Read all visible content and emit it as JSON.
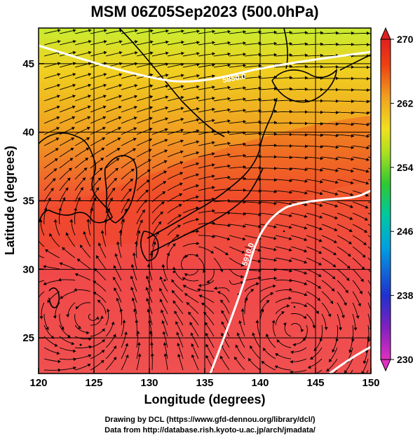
{
  "title": "MSM 06Z05Sep2023 (500.0hPa)",
  "xaxis": {
    "label": "Longitude (degrees)",
    "min": 120,
    "max": 150,
    "ticks": [
      "120",
      "125",
      "130",
      "135",
      "140",
      "145",
      "150"
    ]
  },
  "yaxis": {
    "label": "Latitude  (degrees)",
    "min": 22.4,
    "max": 47.6,
    "ticks": [
      "25",
      "30",
      "35",
      "40",
      "45"
    ]
  },
  "colorbar": {
    "min": 230,
    "max": 270,
    "ticks": [
      "230",
      "238",
      "246",
      "254",
      "262",
      "270"
    ],
    "colors": [
      "#e030c0",
      "#8020c0",
      "#2030d0",
      "#00a0e0",
      "#00c8a0",
      "#30c830",
      "#b0e020",
      "#f0e020",
      "#f0a020",
      "#f04010",
      "#e02020"
    ]
  },
  "contours": [
    {
      "label": "5850.0",
      "color": "#ffffff"
    },
    {
      "label": "5910.0",
      "color": "#ffffff"
    }
  ],
  "credits": {
    "line1": "Drawing by DCL (https://www.gfd-dennou.org/library/dcl/)",
    "line2": "Data from http://database.rish.kyoto-u.ac.jp/arch/jmadata/"
  },
  "map_colors": {
    "north": "#d8ec30",
    "mid": "#f0a020",
    "south": "#f04848",
    "coast": "#000000",
    "grid": "#000000"
  }
}
